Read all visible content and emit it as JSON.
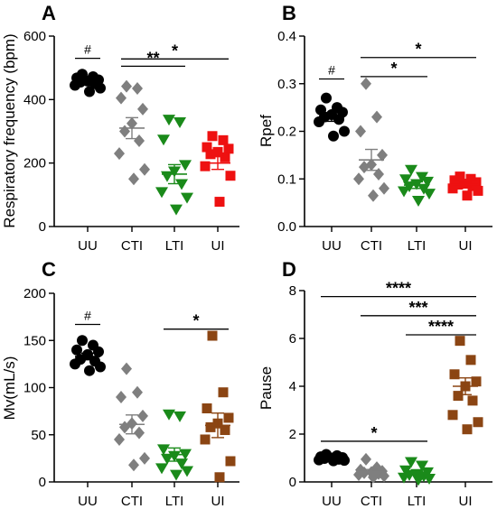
{
  "chart_data": [
    {
      "panel": "A",
      "type": "scatter",
      "ylabel": "Respiratory frequency (bpm)",
      "ylim": [
        0,
        600
      ],
      "yticks": [
        "0",
        "200",
        "400",
        "600"
      ],
      "categories": [
        "UU",
        "CTI",
        "LTI",
        "UI"
      ],
      "colors": [
        "#000000",
        "#7f7f7f",
        "#1a8a1a",
        "#ee1111"
      ],
      "markers": [
        "circle",
        "diamond",
        "triangle",
        "square"
      ],
      "points": [
        [
          480,
          472,
          468,
          462,
          458,
          455,
          450,
          445,
          436,
          425
        ],
        [
          442,
          435,
          405,
          370,
          325,
          300,
          270,
          230,
          180,
          150
        ],
        [
          338,
          330,
          275,
          195,
          175,
          160,
          135,
          110,
          92,
          55
        ],
        [
          285,
          272,
          250,
          245,
          235,
          228,
          218,
          190,
          160,
          78
        ]
      ],
      "means": [
        458,
        310,
        165,
        200
      ],
      "sems": [
        6,
        33,
        30,
        20
      ],
      "annotations": [
        {
          "type": "hash",
          "text": "#",
          "cat": 0,
          "y": 530
        },
        {
          "type": "bracket",
          "text": "**",
          "from": 1,
          "to": 2,
          "y": 505
        },
        {
          "type": "bracket",
          "text": "*",
          "from": 1,
          "to": 3,
          "y": 528
        }
      ]
    },
    {
      "panel": "B",
      "type": "scatter",
      "ylabel": "Rpef",
      "ylim": [
        0,
        0.4
      ],
      "yticks": [
        "0.0",
        "0.1",
        "0.2",
        "0.3",
        "0.4"
      ],
      "categories": [
        "UU",
        "CTI",
        "LTI",
        "UI"
      ],
      "colors": [
        "#000000",
        "#7f7f7f",
        "#1a8a1a",
        "#ee1111"
      ],
      "markers": [
        "circle",
        "diamond",
        "triangle",
        "square"
      ],
      "points": [
        [
          0.27,
          0.25,
          0.245,
          0.24,
          0.235,
          0.23,
          0.225,
          0.22,
          0.2,
          0.19
        ],
        [
          0.3,
          0.23,
          0.2,
          0.15,
          0.13,
          0.125,
          0.11,
          0.1,
          0.08,
          0.065
        ],
        [
          0.12,
          0.105,
          0.1,
          0.095,
          0.09,
          0.085,
          0.08,
          0.075,
          0.07,
          0.055
        ],
        [
          0.105,
          0.1,
          0.097,
          0.093,
          0.09,
          0.088,
          0.085,
          0.08,
          0.075,
          0.065
        ]
      ],
      "means": [
        0.23,
        0.14,
        0.087,
        0.088
      ],
      "sems": [
        0.009,
        0.022,
        0.007,
        0.005
      ],
      "annotations": [
        {
          "type": "hash",
          "text": "#",
          "cat": 0,
          "y": 0.31
        },
        {
          "type": "bracket",
          "text": "*",
          "from": 1,
          "to": 2,
          "y": 0.315
        },
        {
          "type": "bracket",
          "text": "*",
          "from": 1,
          "to": 3,
          "y": 0.355
        }
      ]
    },
    {
      "panel": "C",
      "type": "scatter",
      "ylabel": "Mv(mL/s)",
      "ylim": [
        0,
        200
      ],
      "yticks": [
        "0",
        "50",
        "100",
        "150",
        "200"
      ],
      "categories": [
        "UU",
        "CTI",
        "LTI",
        "UI"
      ],
      "colors": [
        "#000000",
        "#7f7f7f",
        "#1a8a1a",
        "#8b4513"
      ],
      "markers": [
        "circle",
        "diamond",
        "triangle",
        "square"
      ],
      "points": [
        [
          150,
          145,
          140,
          138,
          135,
          130,
          128,
          125,
          122,
          118
        ],
        [
          120,
          95,
          90,
          70,
          62,
          58,
          52,
          45,
          25,
          18
        ],
        [
          72,
          70,
          35,
          30,
          28,
          25,
          20,
          15,
          12,
          8
        ],
        [
          155,
          95,
          78,
          68,
          62,
          58,
          55,
          45,
          22,
          5
        ]
      ],
      "means": [
        133,
        61,
        29,
        60
      ],
      "sems": [
        3.5,
        10,
        7,
        13
      ],
      "annotations": [
        {
          "type": "hash",
          "text": "#",
          "cat": 0,
          "y": 167
        },
        {
          "type": "bracket",
          "text": "*",
          "from": 2,
          "to": 3,
          "y": 162
        }
      ]
    },
    {
      "panel": "D",
      "type": "scatter",
      "ylabel": "Pause",
      "ylim": [
        0,
        8
      ],
      "yticks": [
        "0",
        "2",
        "4",
        "6",
        "8"
      ],
      "categories": [
        "UU",
        "CTI",
        "LTI",
        "UI"
      ],
      "colors": [
        "#000000",
        "#7f7f7f",
        "#1a8a1a",
        "#8b4513"
      ],
      "markers": [
        "circle",
        "diamond",
        "triangle",
        "square"
      ],
      "points": [
        [
          1.15,
          1.1,
          1.05,
          1.02,
          1.0,
          0.98,
          0.95,
          0.92,
          0.9,
          0.88
        ],
        [
          0.95,
          0.6,
          0.5,
          0.45,
          0.4,
          0.38,
          0.35,
          0.3,
          0.25,
          0.2
        ],
        [
          0.85,
          0.7,
          0.5,
          0.42,
          0.35,
          0.3,
          0.25,
          0.2,
          0.15,
          0.1
        ],
        [
          5.9,
          5.1,
          4.5,
          4.2,
          4.0,
          3.6,
          3.4,
          2.8,
          2.5,
          2.2
        ]
      ],
      "means": [
        1.0,
        0.45,
        0.38,
        4.0
      ],
      "sems": [
        0.05,
        0.07,
        0.08,
        0.35
      ],
      "annotations": [
        {
          "type": "bracket",
          "text": "****",
          "from": 0,
          "to": 3,
          "y": 7.75
        },
        {
          "type": "bracket",
          "text": "***",
          "from": 1,
          "to": 3,
          "y": 6.95
        },
        {
          "type": "bracket",
          "text": "****",
          "from": 2,
          "to": 3,
          "y": 6.15
        },
        {
          "type": "bracket",
          "text": "*",
          "from": 0,
          "to": 2,
          "y": 1.7
        }
      ]
    }
  ]
}
